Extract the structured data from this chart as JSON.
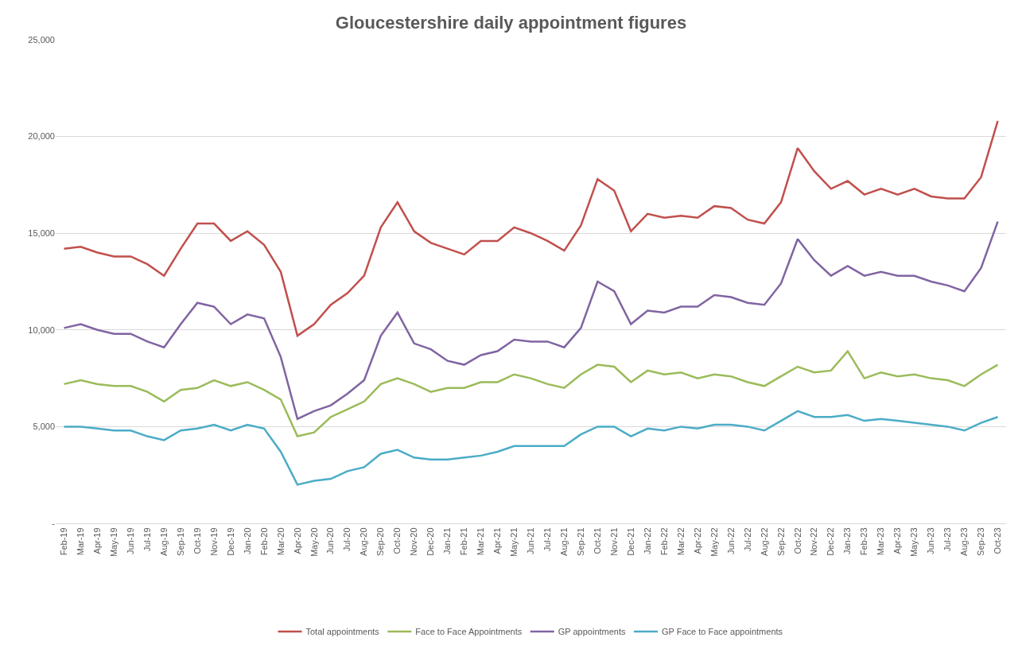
{
  "chart_data": {
    "type": "line",
    "title": "Gloucestershire daily appointment figures",
    "categories": [
      "Feb-19",
      "Mar-19",
      "Apr-19",
      "May-19",
      "Jun-19",
      "Jul-19",
      "Aug-19",
      "Sep-19",
      "Oct-19",
      "Nov-19",
      "Dec-19",
      "Jan-20",
      "Feb-20",
      "Mar-20",
      "Apr-20",
      "May-20",
      "Jun-20",
      "Jul-20",
      "Aug-20",
      "Sep-20",
      "Oct-20",
      "Nov-20",
      "Dec-20",
      "Jan-21",
      "Feb-21",
      "Mar-21",
      "Apr-21",
      "May-21",
      "Jun-21",
      "Jul-21",
      "Aug-21",
      "Sep-21",
      "Oct-21",
      "Nov-21",
      "Dec-21",
      "Jan-22",
      "Feb-22",
      "Mar-22",
      "Apr-22",
      "May-22",
      "Jun-22",
      "Jul-22",
      "Aug-22",
      "Sep-22",
      "Oct-22",
      "Nov-22",
      "Dec-22",
      "Jan-23",
      "Feb-23",
      "Mar-23",
      "Apr-23",
      "May-23",
      "Jun-23",
      "Jul-23",
      "Aug-23",
      "Sep-23",
      "Oct-23"
    ],
    "series": [
      {
        "name": "Total appointments",
        "color": "#c0504d",
        "values": [
          14200,
          14300,
          14000,
          13800,
          13800,
          13400,
          12800,
          14200,
          15500,
          15500,
          14600,
          15100,
          14400,
          13000,
          9700,
          10300,
          11300,
          11900,
          12800,
          15300,
          16600,
          15100,
          14500,
          14200,
          13900,
          14600,
          14600,
          15300,
          15000,
          14600,
          14100,
          15400,
          17800,
          17200,
          15100,
          16000,
          15800,
          15900,
          15800,
          16400,
          16300,
          15700,
          15500,
          16600,
          19400,
          18200,
          17300,
          17700,
          17000,
          17300,
          17000,
          17300,
          16900,
          16800,
          16800,
          17900,
          20800
        ]
      },
      {
        "name": "Face to Face Appointments",
        "color": "#9bbb59",
        "values": [
          7200,
          7400,
          7200,
          7100,
          7100,
          6800,
          6300,
          6900,
          7000,
          7400,
          7100,
          7300,
          6900,
          6400,
          4500,
          4700,
          5500,
          5900,
          6300,
          7200,
          7500,
          7200,
          6800,
          7000,
          7000,
          7300,
          7300,
          7700,
          7500,
          7200,
          7000,
          7700,
          8200,
          8100,
          7300,
          7900,
          7700,
          7800,
          7500,
          7700,
          7600,
          7300,
          7100,
          7600,
          8100,
          7800,
          7900,
          8900,
          7500,
          7800,
          7600,
          7700,
          7500,
          7400,
          7100,
          7700,
          8200
        ]
      },
      {
        "name": "GP appointments",
        "color": "#8064a2",
        "values": [
          10100,
          10300,
          10000,
          9800,
          9800,
          9400,
          9100,
          10300,
          11400,
          11200,
          10300,
          10800,
          10600,
          8600,
          5400,
          5800,
          6100,
          6700,
          7400,
          9700,
          10900,
          9300,
          9000,
          8400,
          8200,
          8700,
          8900,
          9500,
          9400,
          9400,
          9100,
          10100,
          12500,
          12000,
          10300,
          11000,
          10900,
          11200,
          11200,
          11800,
          11700,
          11400,
          11300,
          12400,
          14700,
          13600,
          12800,
          13300,
          12800,
          13000,
          12800,
          12800,
          12500,
          12300,
          12000,
          13200,
          15600
        ]
      },
      {
        "name": "GP Face to Face appointments",
        "color": "#4bacc6",
        "values": [
          5000,
          5000,
          4900,
          4800,
          4800,
          4500,
          4300,
          4800,
          4900,
          5100,
          4800,
          5100,
          4900,
          3700,
          2000,
          2200,
          2300,
          2700,
          2900,
          3600,
          3800,
          3400,
          3300,
          3300,
          3400,
          3500,
          3700,
          4000,
          4000,
          4000,
          4000,
          4600,
          5000,
          5000,
          4500,
          4900,
          4800,
          5000,
          4900,
          5100,
          5100,
          5000,
          4800,
          5300,
          5800,
          5500,
          5500,
          5600,
          5300,
          5400,
          5300,
          5200,
          5100,
          5000,
          4800,
          5200,
          5500
        ]
      }
    ],
    "ylim": [
      0,
      25000
    ],
    "yticks": [
      {
        "value": 0,
        "label": "-"
      },
      {
        "value": 5000,
        "label": "5,000"
      },
      {
        "value": 10000,
        "label": "10,000"
      },
      {
        "value": 15000,
        "label": "15,000"
      },
      {
        "value": 20000,
        "label": "20,000"
      },
      {
        "value": 25000,
        "label": "25,000"
      }
    ],
    "grid": "y",
    "legend": "bottom",
    "marker": "none",
    "line_style": "solid"
  }
}
